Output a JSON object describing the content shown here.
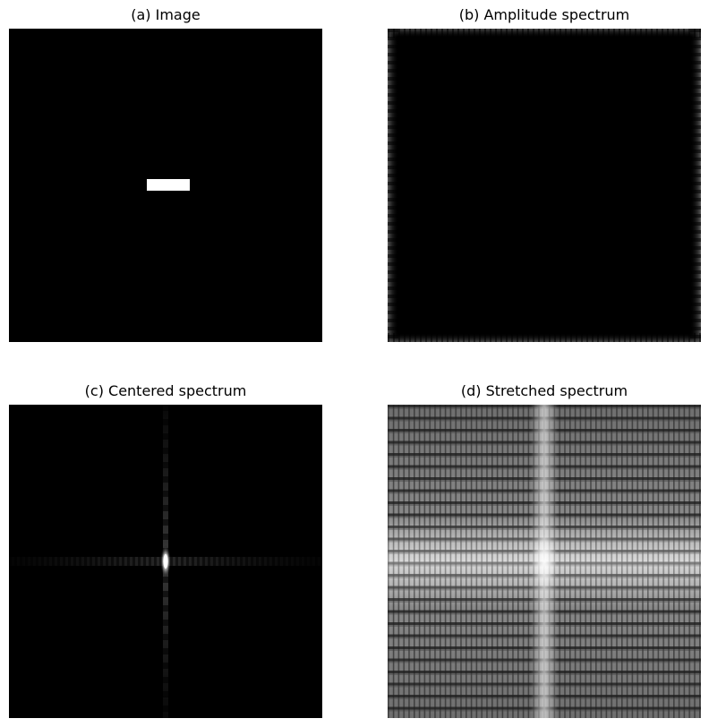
{
  "panels": {
    "a": {
      "title": "(a) Image"
    },
    "b": {
      "title": "(b) Amplitude spectrum"
    },
    "c": {
      "title": "(c) Centered spectrum"
    },
    "d": {
      "title": "(d) Stretched spectrum"
    }
  }
}
